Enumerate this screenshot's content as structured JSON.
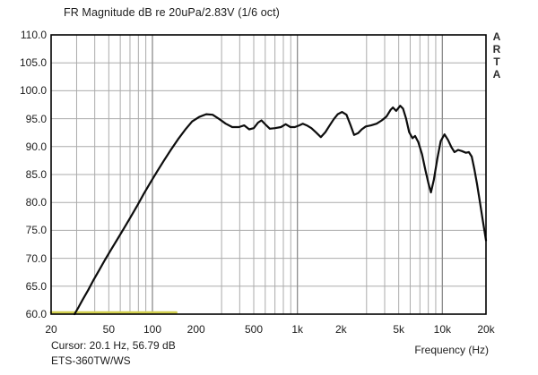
{
  "window": {
    "title": "FR Magnitude dB re 20uPa/2.83V (1/6 oct)",
    "watermark": "ARTA"
  },
  "statusbar": {
    "cursor_readout": "Cursor: 20.1 Hz, 56.79 dB",
    "overlay_label": "ETS-360TW/WS"
  },
  "colors": {
    "curve": "#0d0d0d",
    "cursor_marker": "#d2cf4e",
    "grid_minor": "#ababab",
    "grid_major": "#8c8c8c",
    "frame": "#000000",
    "text": "#1c1c1c"
  },
  "chart_data": {
    "type": "line",
    "title": "FR Magnitude dB re 20uPa/2.83V (1/6 oct)",
    "xlabel": "Frequency (Hz)",
    "ylabel": "",
    "x_scale": "log",
    "xlim": [
      20,
      20000
    ],
    "ylim": [
      60,
      110
    ],
    "y_tick_step": 5,
    "y_tick_labels": [
      "110.0",
      "105.0",
      "100.0",
      "95.0",
      "90.0",
      "85.0",
      "80.0",
      "75.0",
      "70.0",
      "65.0",
      "60.0"
    ],
    "x_ticks": [
      20,
      50,
      100,
      200,
      500,
      1000,
      2000,
      5000,
      10000,
      20000
    ],
    "x_tick_labels": [
      "20",
      "50",
      "100",
      "200",
      "500",
      "1k",
      "2k",
      "5k",
      "10k",
      "20k"
    ],
    "grid": true,
    "legend": "none",
    "cursor": {
      "freq_hz": 20.1,
      "level_db": 56.79
    },
    "series": [
      {
        "name": "ETS-360TW/WS magnitude",
        "color": "#0d0d0d",
        "points": [
          [
            29,
            60.0
          ],
          [
            31,
            61.3
          ],
          [
            33,
            62.6
          ],
          [
            36,
            64.3
          ],
          [
            39,
            66.0
          ],
          [
            43,
            67.9
          ],
          [
            47,
            69.7
          ],
          [
            52,
            71.6
          ],
          [
            57,
            73.3
          ],
          [
            63,
            75.2
          ],
          [
            70,
            77.2
          ],
          [
            78,
            79.3
          ],
          [
            87,
            81.5
          ],
          [
            97,
            83.6
          ],
          [
            108,
            85.6
          ],
          [
            120,
            87.5
          ],
          [
            134,
            89.4
          ],
          [
            150,
            91.3
          ],
          [
            168,
            93.0
          ],
          [
            188,
            94.5
          ],
          [
            210,
            95.3
          ],
          [
            235,
            95.8
          ],
          [
            260,
            95.7
          ],
          [
            290,
            94.9
          ],
          [
            320,
            94.1
          ],
          [
            355,
            93.5
          ],
          [
            395,
            93.5
          ],
          [
            430,
            93.8
          ],
          [
            465,
            93.1
          ],
          [
            500,
            93.3
          ],
          [
            535,
            94.3
          ],
          [
            565,
            94.7
          ],
          [
            610,
            93.8
          ],
          [
            645,
            93.2
          ],
          [
            700,
            93.3
          ],
          [
            770,
            93.5
          ],
          [
            830,
            94.0
          ],
          [
            895,
            93.5
          ],
          [
            960,
            93.5
          ],
          [
            1030,
            93.8
          ],
          [
            1090,
            94.1
          ],
          [
            1160,
            93.8
          ],
          [
            1250,
            93.3
          ],
          [
            1350,
            92.5
          ],
          [
            1450,
            91.7
          ],
          [
            1560,
            92.6
          ],
          [
            1660,
            93.7
          ],
          [
            1780,
            94.9
          ],
          [
            1900,
            95.8
          ],
          [
            2030,
            96.2
          ],
          [
            2180,
            95.7
          ],
          [
            2320,
            93.9
          ],
          [
            2460,
            92.1
          ],
          [
            2620,
            92.4
          ],
          [
            2780,
            93.1
          ],
          [
            2960,
            93.6
          ],
          [
            3220,
            93.8
          ],
          [
            3520,
            94.1
          ],
          [
            3820,
            94.7
          ],
          [
            4120,
            95.4
          ],
          [
            4400,
            96.6
          ],
          [
            4560,
            97.0
          ],
          [
            4800,
            96.4
          ],
          [
            5120,
            97.3
          ],
          [
            5360,
            96.8
          ],
          [
            5620,
            95.0
          ],
          [
            5900,
            92.6
          ],
          [
            6220,
            91.5
          ],
          [
            6480,
            91.9
          ],
          [
            6820,
            90.8
          ],
          [
            7240,
            88.6
          ],
          [
            7640,
            85.8
          ],
          [
            8040,
            83.3
          ],
          [
            8340,
            81.8
          ],
          [
            8740,
            84.1
          ],
          [
            9240,
            87.9
          ],
          [
            9740,
            91.0
          ],
          [
            10340,
            92.2
          ],
          [
            10940,
            91.2
          ],
          [
            11540,
            89.9
          ],
          [
            12140,
            89.0
          ],
          [
            12840,
            89.4
          ],
          [
            13640,
            89.2
          ],
          [
            14540,
            88.9
          ],
          [
            15240,
            89.0
          ],
          [
            15940,
            88.2
          ],
          [
            16640,
            85.9
          ],
          [
            17340,
            83.3
          ],
          [
            18140,
            80.2
          ],
          [
            19040,
            76.7
          ],
          [
            20000,
            73.2
          ]
        ]
      },
      {
        "name": "cursor-level-marker",
        "color": "#d2cf4e",
        "points": [
          [
            20,
            60.3
          ],
          [
            146,
            60.3
          ]
        ]
      }
    ]
  }
}
